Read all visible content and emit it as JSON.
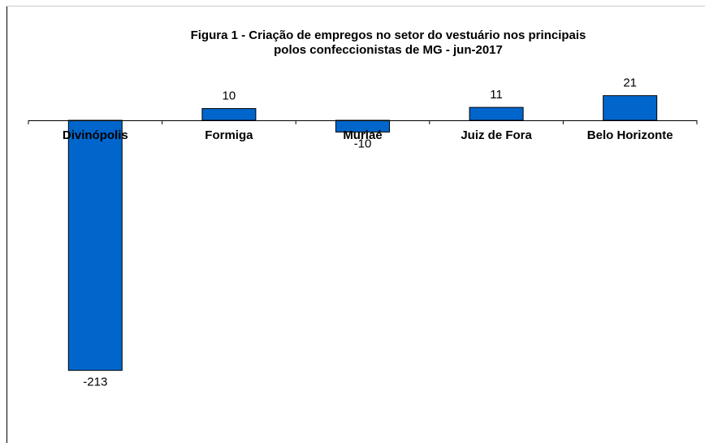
{
  "chart_data": {
    "type": "bar",
    "title": [
      "Figura 1 - Criação de empregos no setor do vestuário nos principais",
      "polos confeccionistas de MG - jun-2017"
    ],
    "categories": [
      "Divinópolis",
      "Formiga",
      "Muriaé",
      "Juiz de Fora",
      "Belo Horizonte"
    ],
    "values": [
      -213,
      10,
      -10,
      11,
      21
    ],
    "color": "#0066cc"
  }
}
